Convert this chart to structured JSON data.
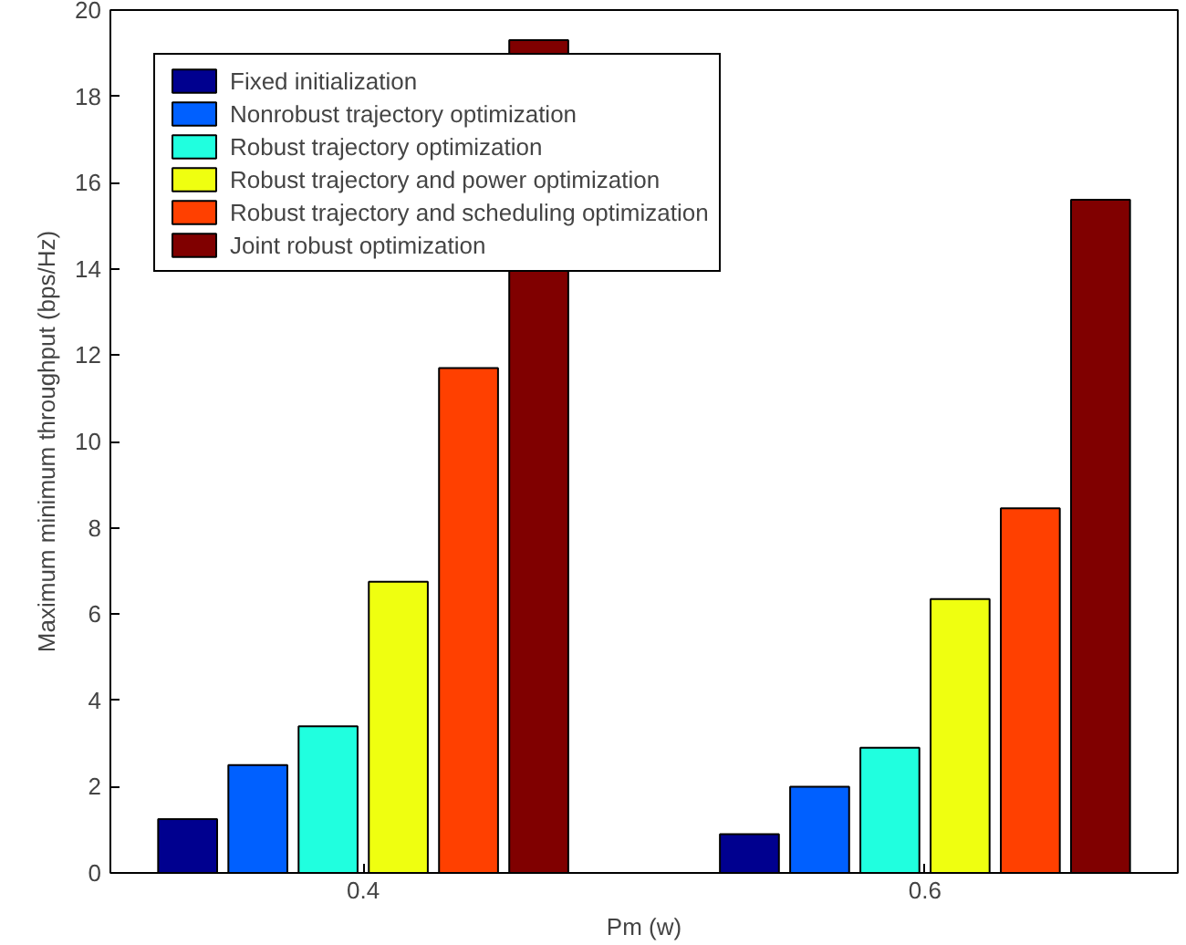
{
  "chart_data": {
    "type": "bar",
    "xlabel": "Pm (w)",
    "ylabel": "Maximum minimum throughput (bps/Hz)",
    "categories": [
      "0.4",
      "0.6"
    ],
    "series": [
      {
        "name": "Fixed initialization",
        "color": "#00008f",
        "values": [
          1.25,
          0.9
        ]
      },
      {
        "name": "Nonrobust trajectory optimization",
        "color": "#0060ff",
        "values": [
          2.5,
          2.0
        ]
      },
      {
        "name": "Robust trajectory optimization",
        "color": "#20ffdf",
        "values": [
          3.4,
          2.9
        ]
      },
      {
        "name": "Robust trajectory and power optimization",
        "color": "#efff10",
        "values": [
          6.75,
          6.35
        ]
      },
      {
        "name": "Robust trajectory and scheduling optimization",
        "color": "#ff4000",
        "values": [
          11.7,
          8.45
        ]
      },
      {
        "name": "Joint robust optimization",
        "color": "#800000",
        "values": [
          19.3,
          15.6
        ]
      }
    ],
    "ylim": [
      0,
      20
    ],
    "yticks": [
      0,
      2,
      4,
      6,
      8,
      10,
      12,
      14,
      16,
      18,
      20
    ],
    "legend": "top left",
    "grid": false
  }
}
